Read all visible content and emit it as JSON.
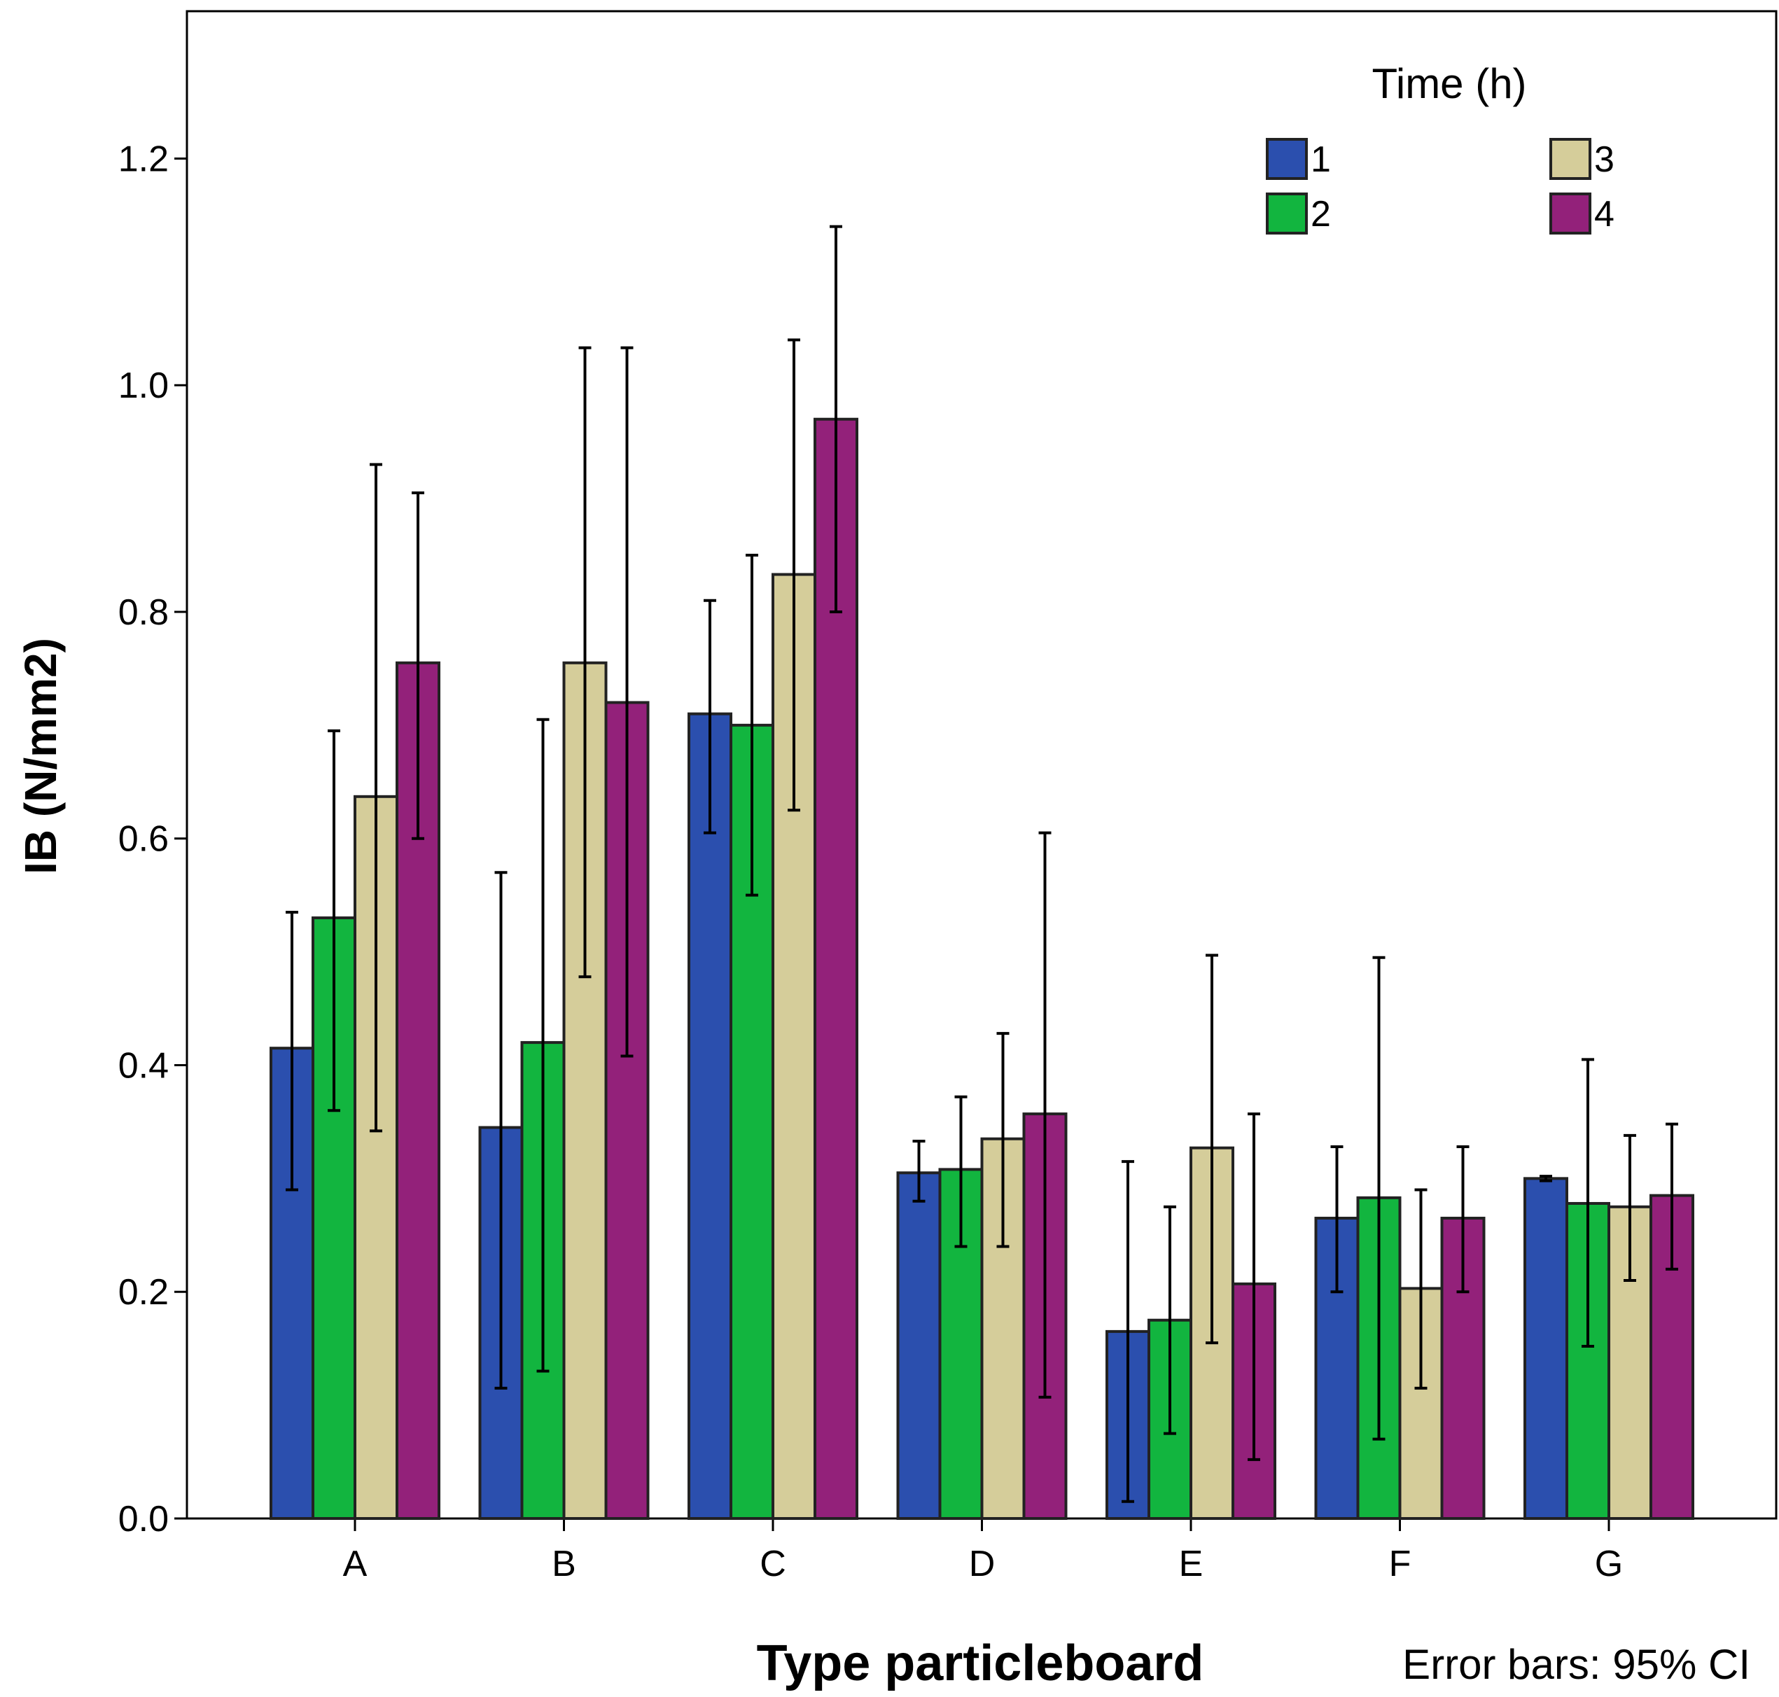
{
  "chart_data": {
    "type": "bar",
    "xlabel": "Type particleboard",
    "ylabel": "IB (N/mm2)",
    "note": "Error bars: 95% CI",
    "legend": {
      "title": "Time (h)",
      "placement": "top-right"
    },
    "categories": [
      "A",
      "B",
      "C",
      "D",
      "E",
      "F",
      "G"
    ],
    "ylim": [
      0,
      1.33
    ],
    "yticks": [
      "0.0",
      "0.2",
      "0.4",
      "0.6",
      "0.8",
      "1.0",
      "1.2"
    ],
    "grid": false,
    "series": [
      {
        "name": "1",
        "color": "#2b4fae",
        "values": [
          0.415,
          0.345,
          0.71,
          0.305,
          0.165,
          0.265,
          0.3
        ],
        "ci_low": [
          0.29,
          0.115,
          0.605,
          0.28,
          0.015,
          0.2,
          0.298
        ],
        "ci_high": [
          0.535,
          0.57,
          0.81,
          0.333,
          0.315,
          0.328,
          0.302
        ]
      },
      {
        "name": "2",
        "color": "#12b53f",
        "values": [
          0.53,
          0.42,
          0.7,
          0.308,
          0.175,
          0.283,
          0.278
        ],
        "ci_low": [
          0.36,
          0.13,
          0.55,
          0.24,
          0.075,
          0.07,
          0.152
        ],
        "ci_high": [
          0.695,
          0.705,
          0.85,
          0.372,
          0.275,
          0.495,
          0.405
        ]
      },
      {
        "name": "3",
        "color": "#d5cd9a",
        "values": [
          0.637,
          0.755,
          0.833,
          0.335,
          0.327,
          0.203,
          0.275
        ],
        "ci_low": [
          0.342,
          0.478,
          0.625,
          0.24,
          0.155,
          0.115,
          0.21
        ],
        "ci_high": [
          0.93,
          1.033,
          1.04,
          0.428,
          0.497,
          0.29,
          0.338
        ]
      },
      {
        "name": "4",
        "color": "#93217a",
        "values": [
          0.755,
          0.72,
          0.97,
          0.357,
          0.207,
          0.265,
          0.285
        ],
        "ci_low": [
          0.6,
          0.408,
          0.8,
          0.107,
          0.052,
          0.2,
          0.22
        ],
        "ci_high": [
          0.905,
          1.033,
          1.14,
          0.605,
          0.357,
          0.328,
          0.348
        ]
      }
    ]
  }
}
